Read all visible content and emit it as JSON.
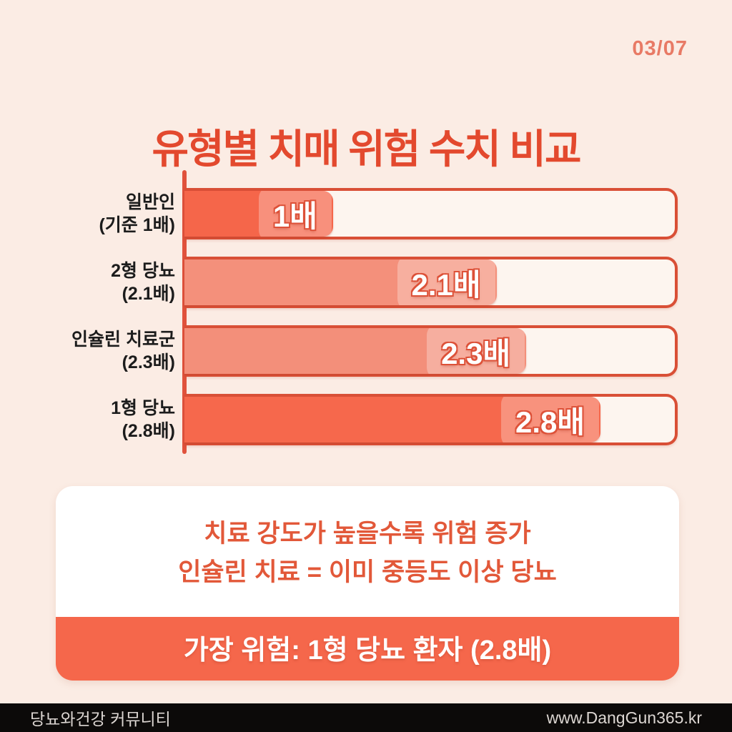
{
  "page": {
    "indicator": "03/07",
    "title": "유형별 치매 위험 수치 비교"
  },
  "chart_data": {
    "type": "bar",
    "orientation": "horizontal",
    "title": "유형별 치매 위험 수치 비교",
    "categories": [
      "일반인 (기준 1배)",
      "2형 당뇨 (2.1배)",
      "인슐린 치료군 (2.3배)",
      "1형 당뇨 (2.8배)"
    ],
    "values": [
      1,
      2.1,
      2.3,
      2.8
    ],
    "value_labels": [
      "1배",
      "2.1배",
      "2.3배",
      "2.8배"
    ],
    "unit": "배",
    "xlim": [
      0,
      3.3
    ],
    "grid": false,
    "legend": false,
    "rows": [
      {
        "label_line1": "일반인",
        "label_line2": "(기준 1배)",
        "value": 1,
        "value_label": "1배",
        "fill_color": "#f5664a"
      },
      {
        "label_line1": "2형 당뇨",
        "label_line2": "(2.1배)",
        "value": 2.1,
        "value_label": "2.1배",
        "fill_color": "#f4907b"
      },
      {
        "label_line1": "인슐린 치료군",
        "label_line2": "(2.3배)",
        "value": 2.3,
        "value_label": "2.3배",
        "fill_color": "#f38f7a"
      },
      {
        "label_line1": "1형 당뇨",
        "label_line2": "(2.8배)",
        "value": 2.8,
        "value_label": "2.8배",
        "fill_color": "#f6684c"
      }
    ]
  },
  "info_box": {
    "line1": "치료 강도가 높을수록 위험 증가",
    "line2": "인슐린 치료 = 이미 중등도 이상 당뇨"
  },
  "banner": {
    "text": "가장 위험: 1형 당뇨 환자 (2.8배)"
  },
  "footer": {
    "left": "당뇨와건강 커뮤니티",
    "right": "www.DangGun365.kr"
  },
  "colors": {
    "background": "#fbece4",
    "title": "#e3492e",
    "page_indicator": "#e87a65",
    "bar_strong": "#f5664a",
    "bar_light": "#f4907b",
    "bar_border": "#d94f36",
    "track_bg": "#fdf5ef",
    "axis": "#e0523c",
    "label_text": "#1c1c1c",
    "info_text": "#e25839",
    "banner_bg": "#f5674b",
    "banner_text": "#ffffff",
    "footer_bg": "#0c0a09",
    "footer_text": "#dcd6d2"
  }
}
